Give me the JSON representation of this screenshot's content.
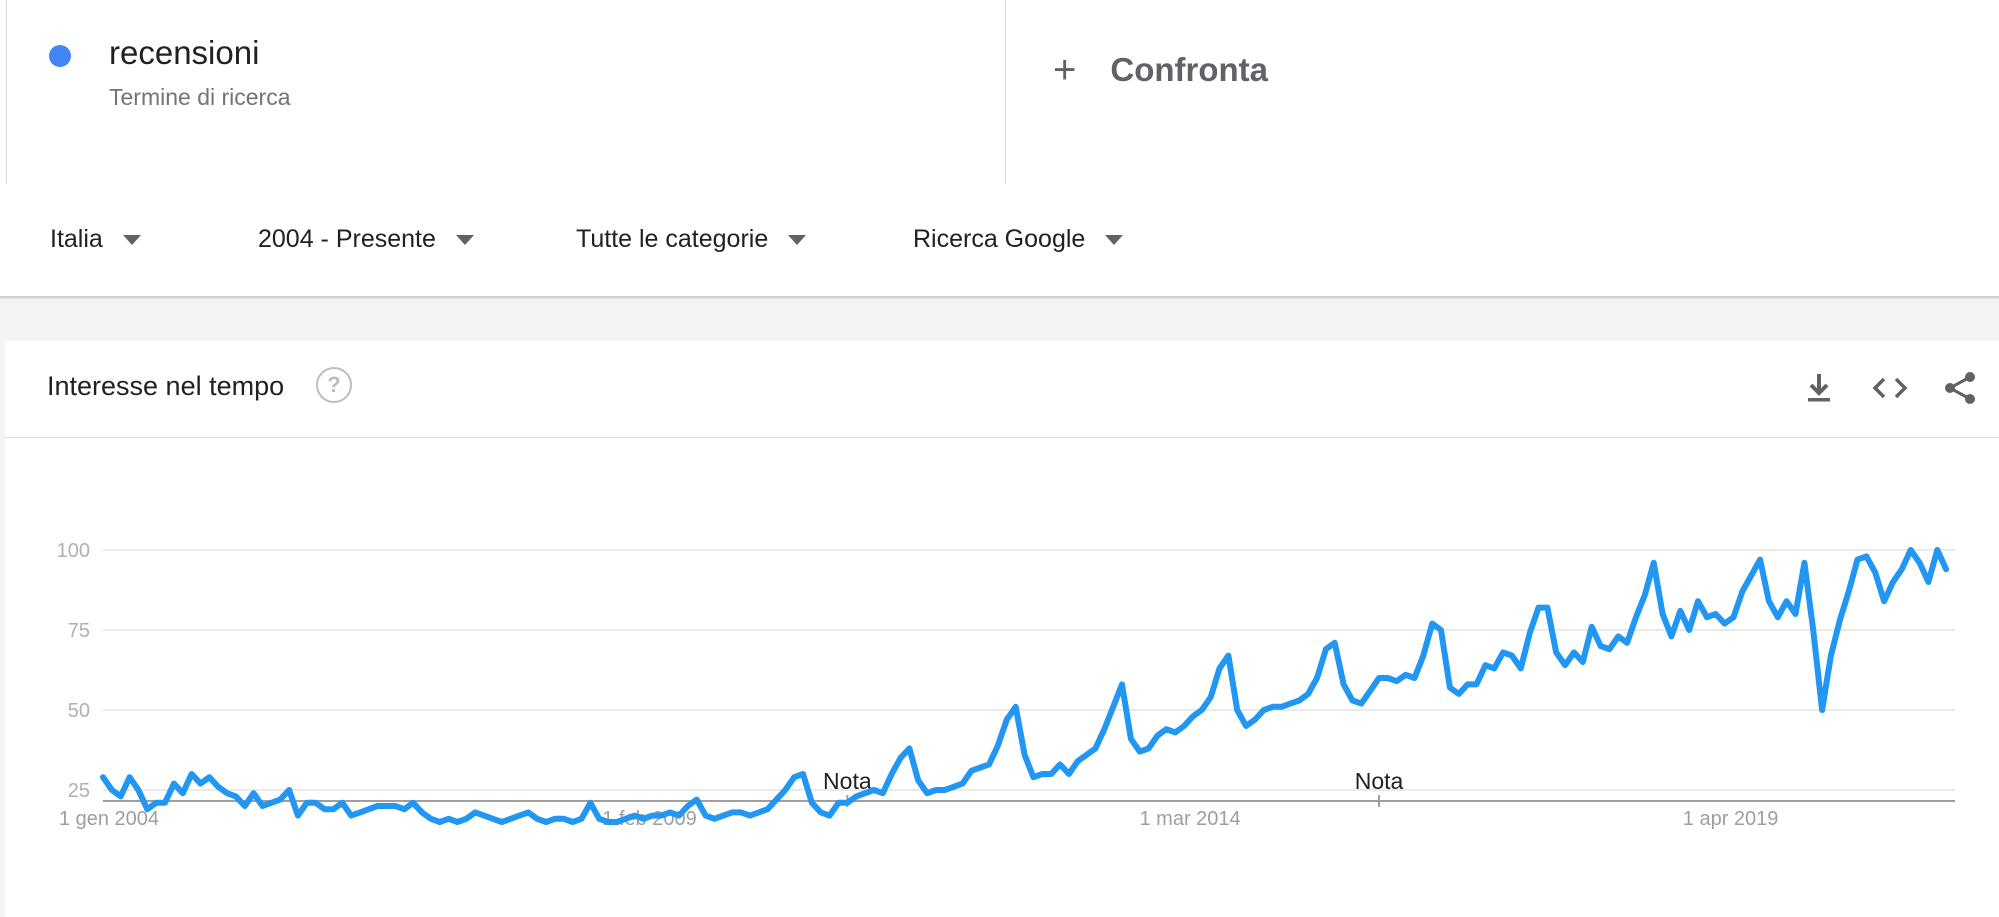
{
  "term": {
    "name": "recensioni",
    "type": "Termine di ricerca",
    "color": "#4285f4"
  },
  "compare": {
    "icon": "plus-icon",
    "label": "Confronta"
  },
  "filters": [
    {
      "label": "Italia",
      "icon": "caret-down-icon"
    },
    {
      "label": "2004 - Presente",
      "icon": "caret-down-icon"
    },
    {
      "label": "Tutte le categorie",
      "icon": "caret-down-icon"
    },
    {
      "label": "Ricerca Google",
      "icon": "caret-down-icon"
    }
  ],
  "card": {
    "title": "Interesse nel tempo",
    "help_icon": "help-icon",
    "tools": [
      "download-icon",
      "embed-code-icon",
      "share-icon"
    ]
  },
  "chart_data": {
    "type": "line",
    "title": "Interesse nel tempo",
    "line_color": "#2196f3",
    "grid": true,
    "ylim": [
      0,
      100
    ],
    "yticks": [
      25,
      50,
      75,
      100
    ],
    "x_range": [
      "2004-01",
      "2021-06"
    ],
    "xticks": [
      {
        "x": "2004-01",
        "label": "1 gen 2004"
      },
      {
        "x": "2009-02",
        "label": "1 feb 2009"
      },
      {
        "x": "2014-03",
        "label": "1 mar 2014"
      },
      {
        "x": "2019-04",
        "label": "1 apr 2019"
      }
    ],
    "annotations": [
      {
        "x": "2011-01",
        "label": "Nota"
      },
      {
        "x": "2016-01",
        "label": "Nota"
      }
    ],
    "series": [
      {
        "name": "recensioni",
        "start": "2004-01",
        "interval": "month",
        "values": [
          29,
          25,
          23,
          29,
          25,
          19,
          21,
          21,
          27,
          24,
          30,
          27,
          29,
          26,
          24,
          23,
          20,
          24,
          20,
          21,
          22,
          25,
          17,
          21,
          21,
          19,
          19,
          21,
          17,
          18,
          19,
          20,
          20,
          20,
          19,
          21,
          18,
          16,
          15,
          16,
          15,
          16,
          18,
          17,
          16,
          15,
          16,
          17,
          18,
          16,
          15,
          16,
          16,
          15,
          16,
          21,
          16,
          15,
          15,
          16,
          17,
          16,
          17,
          17,
          18,
          17,
          20,
          22,
          17,
          16,
          17,
          18,
          18,
          17,
          18,
          19,
          22,
          25,
          29,
          30,
          21,
          18,
          17,
          21,
          21,
          23,
          24,
          25,
          24,
          30,
          35,
          38,
          28,
          24,
          25,
          25,
          26,
          27,
          31,
          32,
          33,
          39,
          47,
          51,
          36,
          29,
          30,
          30,
          33,
          30,
          34,
          36,
          38,
          44,
          51,
          58,
          41,
          37,
          38,
          42,
          44,
          43,
          45,
          48,
          50,
          54,
          63,
          67,
          50,
          45,
          47,
          50,
          51,
          51,
          52,
          53,
          55,
          60,
          69,
          71,
          58,
          53,
          52,
          56,
          60,
          60,
          59,
          61,
          60,
          67,
          77,
          75,
          57,
          55,
          58,
          58,
          64,
          63,
          68,
          67,
          63,
          74,
          82,
          82,
          68,
          64,
          68,
          65,
          76,
          70,
          69,
          73,
          71,
          79,
          86,
          96,
          80,
          73,
          81,
          75,
          84,
          79,
          80,
          77,
          79,
          87,
          92,
          97,
          84,
          79,
          84,
          80,
          96,
          75,
          50,
          67,
          78,
          87,
          97,
          98,
          93,
          84,
          90,
          94,
          100,
          96,
          90,
          100,
          94
        ]
      }
    ]
  }
}
